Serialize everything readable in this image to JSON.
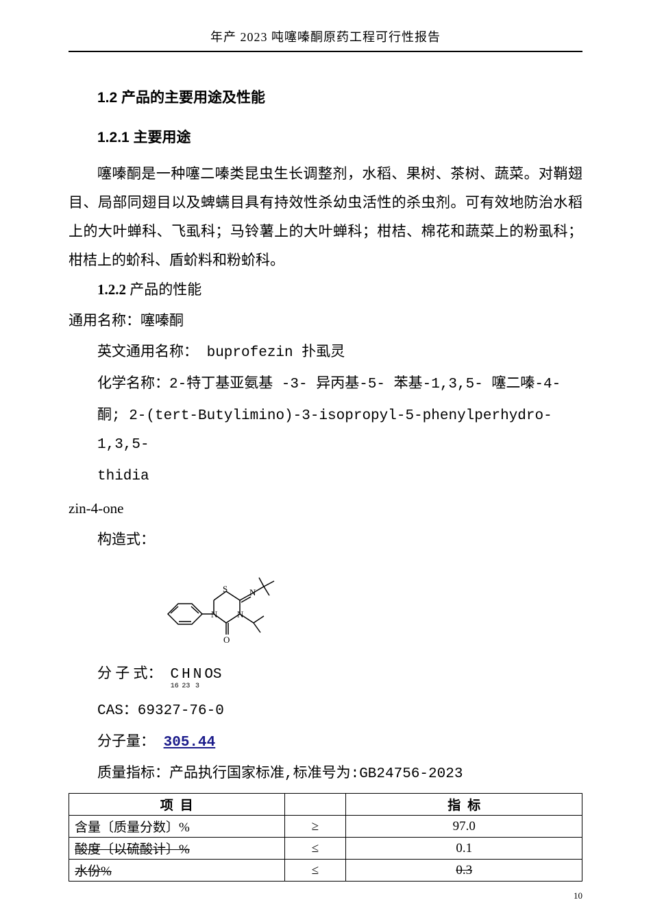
{
  "header": "年产 2023 吨噻嗪酮原药工程可行性报告",
  "sec_1_2": "1.2 产品的主要用途及性能",
  "sec_1_2_1": "1.2.1 主要用途",
  "para_use": "噻嗪酮是一种噻二嗪类昆虫生长调整剂，水稻、果树、茶树、蔬菜。对鞘翅目、局部同翅目以及蜱螨目具有持效性杀幼虫活性的杀虫剂。可有效地防治水稻上的大叶蝉科、飞虱科；马铃薯上的大叶蝉科；柑桔、棉花和蔬菜上的粉虱科；柑桔上的蚧科、盾蚧料和粉蚧科。",
  "sec_1_2_2": "1.2.2 产品的性能",
  "common_name_label": "通用名称：噻嗪酮",
  "eng_name": "英文通用名称： buprofezin   扑虱灵",
  "chem_name": "化学名称：2-特丁基亚氨基 -3- 异丙基-5- 苯基-1,3,5- 噻二嗪-4-",
  "chem_name_2": "酮; 2-(tert-Butylimino)-3-isopropyl-5-phenylperhydro-1,3,5-",
  "chem_name_3": "thidia",
  "chem_name_4": "zin-4-one",
  "struct_label": "构造式：",
  "formula_label": "分 子 式：",
  "formula": {
    "atoms": [
      {
        "sym": "C",
        "sub": "16"
      },
      {
        "sym": "H",
        "sub": "23"
      },
      {
        "sym": "N",
        "sub": "3"
      },
      {
        "sym": "OS",
        "sub": ""
      }
    ]
  },
  "cas_line": "CAS：69327-76-0",
  "mw_label": "分子量：",
  "mw_value": "305.44",
  "quality_line": "质量指标：产品执行国家标准,标准号为:GB24756-2023",
  "table": {
    "header_left": "项",
    "header_left2": "目",
    "header_right": "指",
    "header_right2": "标",
    "rows": [
      {
        "name": "含量〔质量分数〕%",
        "op": "≥",
        "val": "97.0",
        "strike_name": false,
        "strike_val": false
      },
      {
        "name": "酸度〔以硫酸计〕%",
        "op": "≤",
        "val": "0.1",
        "strike_name": true,
        "strike_val": false
      },
      {
        "name": "水份%",
        "op": "≤",
        "val": "0.3",
        "strike_name": true,
        "strike_val": true
      }
    ]
  },
  "page_num": "10",
  "colors": {
    "text": "#000000",
    "bg": "#ffffff",
    "link": "#1a1a8a"
  }
}
